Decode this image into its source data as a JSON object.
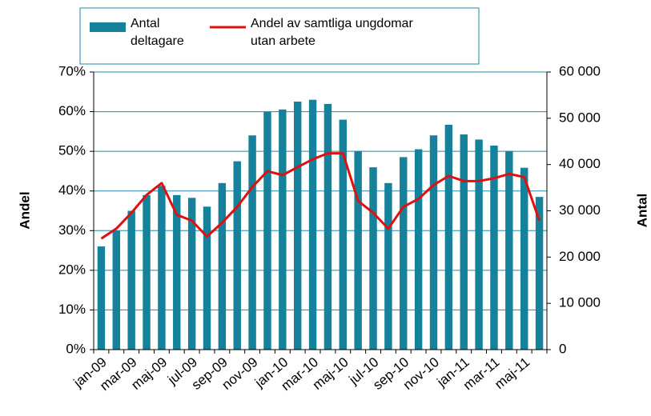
{
  "chart_data": {
    "type": "bar_line",
    "categories": [
      "jan-09",
      null,
      "mar-09",
      null,
      "maj-09",
      null,
      "jul-09",
      null,
      "sep-09",
      null,
      "nov-09",
      null,
      "jan-10",
      null,
      "mar-10",
      null,
      "maj-10",
      null,
      "jul-10",
      null,
      "sep-10",
      null,
      "nov-10",
      null,
      "jan-11",
      null,
      "mar-11",
      null,
      "maj-11",
      null
    ],
    "series": [
      {
        "name": "Antal deltagare",
        "type": "bar",
        "axis": "y2",
        "color": "#15819b",
        "values": [
          22300,
          25700,
          30000,
          33400,
          35400,
          33400,
          32800,
          30900,
          36000,
          40700,
          46300,
          51400,
          51900,
          53600,
          54000,
          53100,
          49700,
          42900,
          39400,
          36000,
          41600,
          43300,
          46300,
          48600,
          46500,
          45400,
          44100,
          42900,
          39300,
          33000
        ]
      },
      {
        "name": "Andel av samtliga ungdomar utan arbete",
        "type": "line",
        "axis": "y",
        "color": "#e01010",
        "values": [
          28,
          30.5,
          34.5,
          39,
          42,
          34,
          32.5,
          28.5,
          32,
          36,
          41,
          45,
          44,
          46,
          48,
          49.5,
          49.5,
          37.5,
          34.5,
          30.5,
          36,
          38,
          41.5,
          43.8,
          42.5,
          42.5,
          43.2,
          44.3,
          43.5,
          32.5
        ]
      }
    ],
    "ylabel": "Andel",
    "y2label": "Antal",
    "ylim": [
      0,
      70
    ],
    "yticks": [
      {
        "value": 0,
        "label": "0%"
      },
      {
        "value": 10,
        "label": "10%"
      },
      {
        "value": 20,
        "label": "20%"
      },
      {
        "value": 30,
        "label": "30%"
      },
      {
        "value": 40,
        "label": "40%"
      },
      {
        "value": 50,
        "label": "50%"
      },
      {
        "value": 60,
        "label": "60%"
      },
      {
        "value": 70,
        "label": "70%"
      }
    ],
    "y2lim": [
      0,
      60000
    ],
    "y2ticks": [
      0,
      {
        "value": 10000,
        "label": "10 000"
      },
      {
        "value": 20000,
        "label": "20 000"
      },
      {
        "value": 30000,
        "label": "30 000"
      },
      {
        "value": 40000,
        "label": "40 000"
      },
      {
        "value": 50000,
        "label": "50 000"
      },
      {
        "value": 60000,
        "label": "60 000"
      }
    ],
    "grid": true
  }
}
